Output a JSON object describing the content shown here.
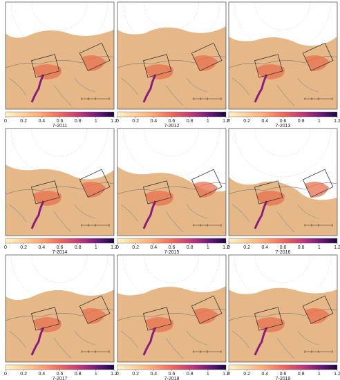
{
  "panels": [
    {
      "label": "7-2011"
    },
    {
      "label": "7-2012"
    },
    {
      "label": "7-2013"
    },
    {
      "label": "7-2014"
    },
    {
      "label": "7-2015"
    },
    {
      "label": "7-2016"
    },
    {
      "label": "7-2017"
    },
    {
      "label": "7-2018"
    },
    {
      "label": "7-2019"
    }
  ],
  "colorbar": {
    "lim": [
      0,
      1.2
    ],
    "ticks": [
      0,
      0.2,
      0.4,
      0.6,
      0.8,
      1,
      1.2
    ]
  }
}
